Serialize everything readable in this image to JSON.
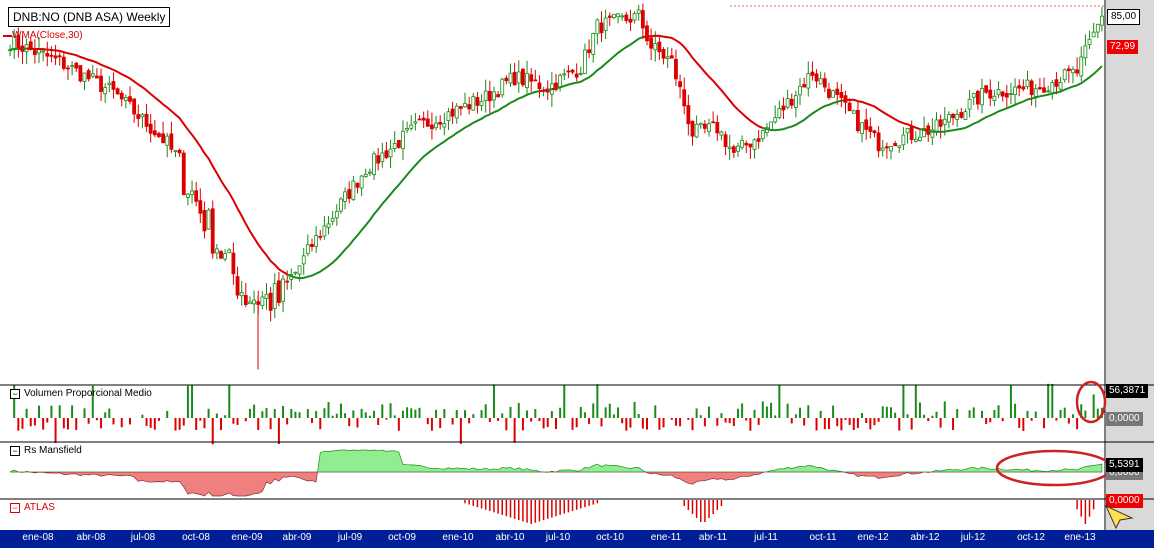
{
  "header": {
    "title": "DNB:NO (DNB ASA) Weekly",
    "wma_label": "WMA(Close,30)"
  },
  "panes": {
    "volume": {
      "label": "Volumen Proporcional Medio",
      "value": "56,3871",
      "zero": "0,0000"
    },
    "mansfield": {
      "label": "Rs Mansfield",
      "value": "5,5391",
      "zero": "0,0000"
    },
    "atlas": {
      "label": "ATLAS",
      "value": "0,0000"
    }
  },
  "price_tags": {
    "last": "85,00",
    "wma": "72,99"
  },
  "colors": {
    "up": "#1a8a1a",
    "down": "#dd0000",
    "wma_red": "#dd0000",
    "wma_green": "#1a8a1a",
    "mansfield_pos": "#90ee90",
    "mansfield_neg": "#f08080",
    "axis_bg": "#001e96",
    "highlight": "#cc2222"
  },
  "chart_data": {
    "type": "candlestick",
    "title": "DNB:NO (DNB ASA) Weekly",
    "x_tick_labels": [
      "ene-08",
      "abr-08",
      "jul-08",
      "oct-08",
      "ene-09",
      "abr-09",
      "jul-09",
      "oct-09",
      "ene-10",
      "abr-10",
      "jul-10",
      "oct-10",
      "ene-11",
      "abr-11",
      "jul-11",
      "oct-11",
      "ene-12",
      "abr-12",
      "jul-12",
      "oct-12",
      "ene-13"
    ],
    "price_anchor_weeks": [
      0,
      12,
      25,
      38,
      52,
      57,
      65,
      73,
      86,
      98,
      115,
      122,
      130,
      138,
      142,
      152,
      155,
      160,
      165,
      171,
      175,
      182,
      194,
      205,
      210,
      224,
      236,
      248,
      258,
      264
    ],
    "price_anchor_closes": [
      80,
      76,
      70,
      60,
      37,
      30,
      29,
      40,
      55,
      63,
      69,
      73,
      71,
      75,
      83,
      85,
      79,
      76,
      62,
      63,
      58,
      62,
      74,
      64,
      60,
      63,
      70,
      71,
      74,
      85
    ],
    "ylim": [
      15,
      87
    ],
    "series": [
      {
        "name": "WMA(Close,30)",
        "last": 72.99
      },
      {
        "name": "Volumen Proporcional Medio",
        "last": 56.3871
      },
      {
        "name": "Rs Mansfield",
        "last": 5.5391
      },
      {
        "name": "ATLAS",
        "last": 0.0
      }
    ]
  }
}
